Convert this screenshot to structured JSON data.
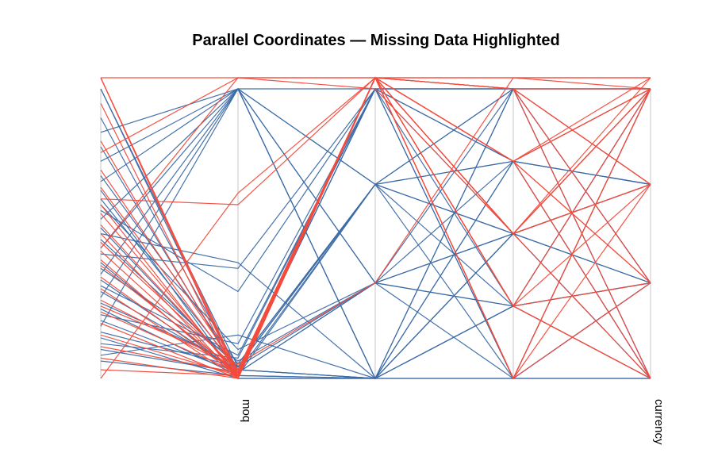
{
  "chart_data": {
    "type": "parallel-coordinates",
    "title": "Parallel Coordinates — Missing Data Highlighted",
    "axes": [
      "",
      "moq",
      "",
      "",
      "currency"
    ],
    "value_range": [
      0,
      1
    ],
    "missing_position": "above-axis-top",
    "colors": {
      "complete": "#3c6ca6",
      "missing": "#f44b3b",
      "axis": "#d0d0d0"
    },
    "grid": false,
    "legend": "none",
    "complete_rows": [
      [
        0.85,
        1,
        0.33,
        0.5,
        1
      ],
      [
        0.8,
        0.02,
        1,
        0,
        0.33
      ],
      [
        0.75,
        1,
        0,
        0.25,
        0
      ],
      [
        0.7,
        0.05,
        0.67,
        0.75,
        0.67
      ],
      [
        0.68,
        1,
        1,
        1,
        1
      ],
      [
        0.62,
        0.03,
        0,
        0,
        0
      ],
      [
        0.6,
        0.1,
        0.33,
        0.5,
        0.33
      ],
      [
        0.55,
        1,
        0.67,
        0.25,
        1
      ],
      [
        0.52,
        0.02,
        1,
        0.75,
        0.67
      ],
      [
        0.5,
        0.4,
        0,
        0.5,
        0
      ],
      [
        0.48,
        0.04,
        0.33,
        1,
        0.33
      ],
      [
        0.45,
        1,
        0.67,
        0,
        1
      ],
      [
        0.43,
        0.38,
        1,
        0.5,
        0.67
      ],
      [
        0.4,
        0.01,
        0,
        0.75,
        0
      ],
      [
        0.38,
        0.06,
        0.33,
        0.25,
        0.33
      ],
      [
        0.36,
        1,
        0,
        1,
        0.67
      ],
      [
        0.34,
        0.02,
        0.67,
        0.5,
        0
      ],
      [
        0.32,
        0.08,
        1,
        0,
        1
      ],
      [
        0.3,
        0.03,
        0,
        0.25,
        0.33
      ],
      [
        0.28,
        1,
        0.33,
        0.75,
        0
      ],
      [
        0.26,
        0.05,
        0.67,
        1,
        1
      ],
      [
        0.24,
        0.01,
        0,
        0.5,
        0.67
      ],
      [
        0.22,
        0.12,
        1,
        0.25,
        0.33
      ],
      [
        0.2,
        0.02,
        0.33,
        0,
        0
      ],
      [
        0.18,
        1,
        0,
        0.75,
        1
      ],
      [
        0.16,
        0.04,
        0.67,
        0.5,
        0.33
      ],
      [
        0.14,
        0,
        0,
        1,
        0
      ],
      [
        0.12,
        0.07,
        1,
        0.75,
        0.67
      ],
      [
        0.1,
        0.02,
        0.33,
        0.25,
        1
      ],
      [
        0.08,
        0.15,
        0,
        0,
        0.33
      ],
      [
        0.06,
        0.01,
        0.67,
        1,
        0
      ],
      [
        0.9,
        0.03,
        0,
        0.5,
        0.67
      ],
      [
        0.65,
        0,
        0,
        0.25,
        0
      ],
      [
        0.58,
        0.3,
        1,
        1,
        0.33
      ],
      [
        1,
        0.02,
        1,
        1,
        1
      ],
      [
        1,
        0.04,
        0.67,
        0.75,
        0.67
      ]
    ],
    "rows_with_missing": [
      [
        null,
        0,
        null,
        0.5,
        0.67
      ],
      [
        null,
        0.02,
        null,
        0.75,
        1
      ],
      [
        null,
        0.01,
        null,
        0.25,
        0.33
      ],
      [
        0.95,
        0,
        null,
        0,
        1
      ],
      [
        0.82,
        0.01,
        null,
        1,
        0
      ],
      [
        0.72,
        0.03,
        null,
        0.5,
        1
      ],
      [
        0.66,
        0.02,
        null,
        0.75,
        0.33
      ],
      [
        0.6,
        0,
        null,
        0.25,
        0.67
      ],
      [
        0.57,
        0.01,
        null,
        1,
        1
      ],
      [
        0.53,
        0.02,
        null,
        0,
        0.67
      ],
      [
        0.5,
        0,
        null,
        0.5,
        0
      ],
      [
        0.47,
        0.03,
        null,
        0.75,
        1
      ],
      [
        0.44,
        0.01,
        null,
        0.25,
        0
      ],
      [
        0.41,
        0,
        null,
        1,
        0.67
      ],
      [
        0.39,
        0.02,
        null,
        0,
        0.33
      ],
      [
        0.35,
        0.01,
        null,
        0.5,
        1
      ],
      [
        0.31,
        0,
        null,
        0.75,
        0
      ],
      [
        0.27,
        0.03,
        null,
        0.25,
        1
      ],
      [
        0.23,
        0.02,
        null,
        1,
        0.33
      ],
      [
        0.19,
        0,
        null,
        0.5,
        0.67
      ],
      [
        0.15,
        0.01,
        null,
        0,
        1
      ],
      [
        0.11,
        0.02,
        null,
        0.75,
        0.33
      ],
      [
        0.07,
        0,
        null,
        0.25,
        0
      ],
      [
        0.03,
        0.01,
        null,
        1,
        0.67
      ],
      [
        0,
        0.64,
        null,
        0.5,
        1
      ],
      [
        0.62,
        0.6,
        null,
        0.75,
        null
      ],
      [
        0.78,
        null,
        null,
        null,
        null
      ],
      [
        0.45,
        null,
        1,
        0.5,
        null
      ],
      [
        0.25,
        0.05,
        0.33,
        null,
        1
      ],
      [
        null,
        null,
        null,
        null,
        null
      ]
    ]
  }
}
